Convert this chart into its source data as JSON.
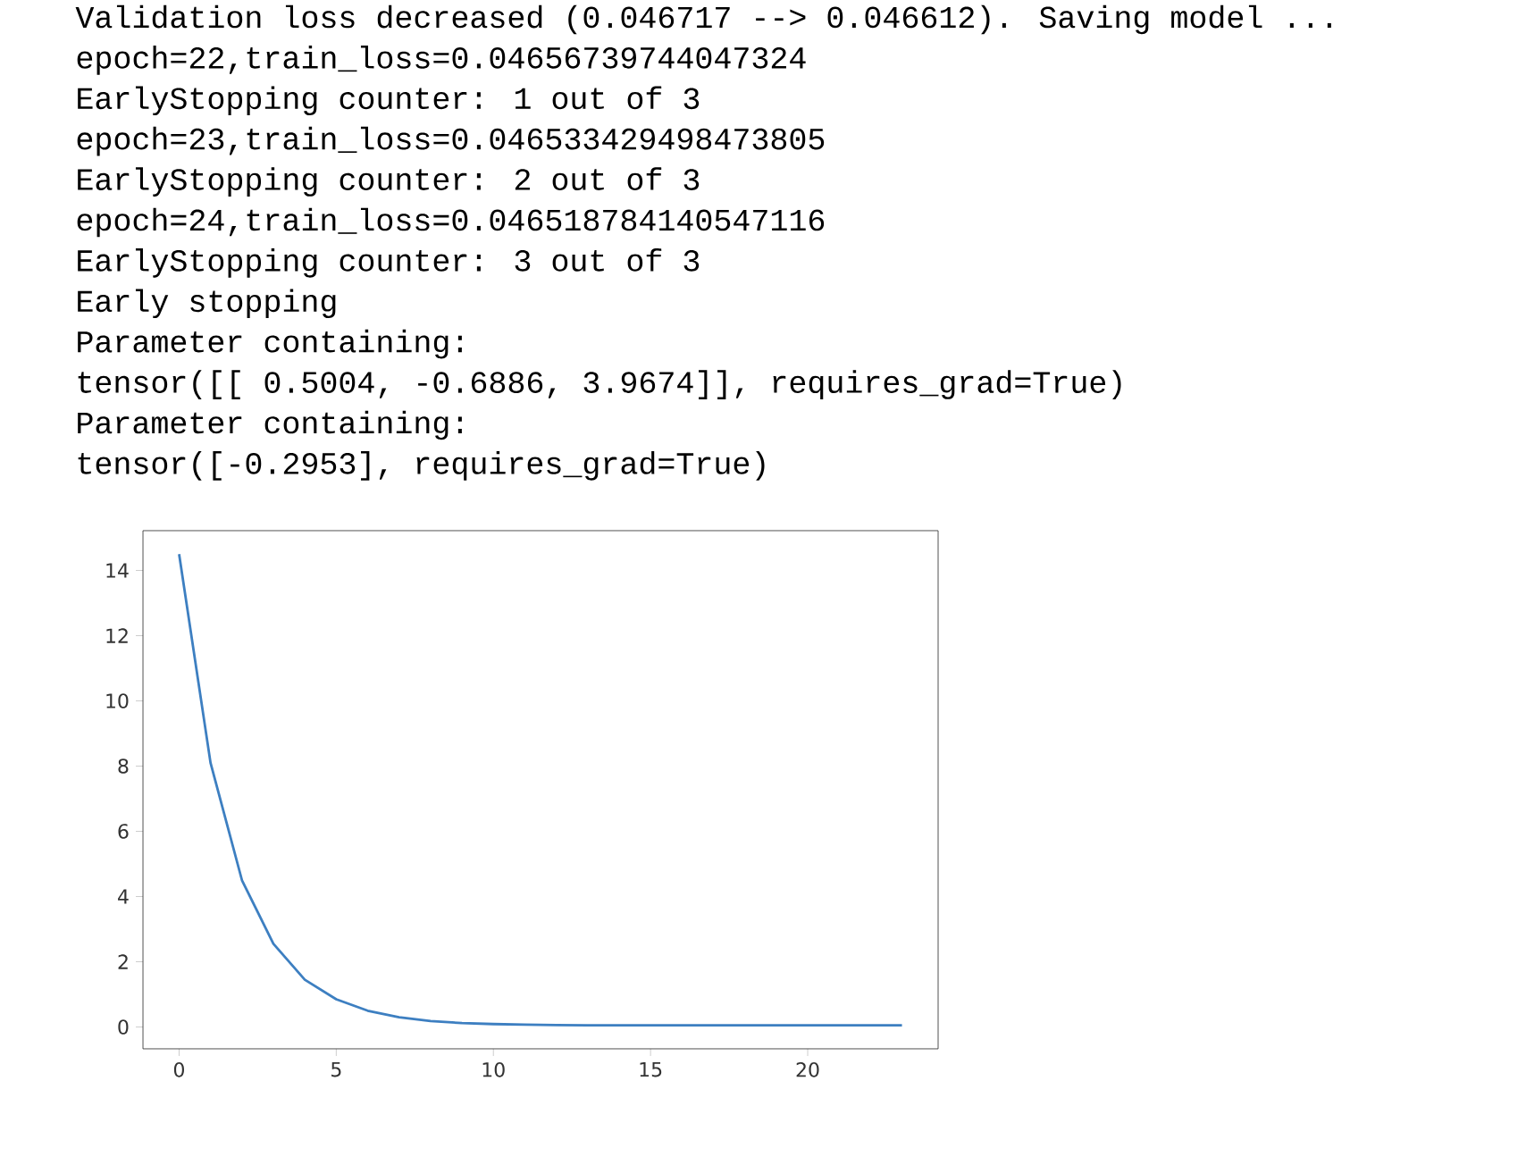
{
  "chart_data": {
    "type": "line",
    "annotations": [
      "Validation loss decreased (0.046717 --> 0.046612).  Saving model ...",
      "epoch=22,train_loss=0.04656739744047324",
      "EarlyStopping counter: 1 out of 3",
      "epoch=23,train_loss=0.046533429498473805",
      "EarlyStopping counter: 2 out of 3",
      "epoch=24,train_loss=0.046518784140547116",
      "EarlyStopping counter: 3 out of 3",
      "Early stopping",
      "Parameter containing:",
      "tensor([[ 0.5004, -0.6886,  3.9674]], requires_grad=True)",
      "Parameter containing:",
      "tensor([-0.2953], requires_grad=True)"
    ],
    "x": [
      0,
      1,
      2,
      3,
      4,
      5,
      6,
      7,
      8,
      9,
      10,
      11,
      12,
      13,
      14,
      15,
      16,
      17,
      18,
      19,
      20,
      21,
      22,
      23
    ],
    "series": [
      {
        "color": "#3d7fc1",
        "values": [
          14.5,
          8.1,
          4.5,
          2.55,
          1.45,
          0.85,
          0.5,
          0.3,
          0.18,
          0.12,
          0.09,
          0.07,
          0.06,
          0.05,
          0.05,
          0.05,
          0.05,
          0.05,
          0.05,
          0.05,
          0.05,
          0.05,
          0.05,
          0.05
        ]
      }
    ],
    "xlim": [
      -1.15,
      24.15
    ],
    "ylim": [
      -0.67,
      15.22
    ],
    "xticks": [
      0,
      5,
      10,
      15,
      20
    ],
    "yticks": [
      0,
      2,
      4,
      6,
      8,
      10,
      12,
      14
    ],
    "grid": false,
    "marker": "none",
    "line_style": "solid"
  }
}
